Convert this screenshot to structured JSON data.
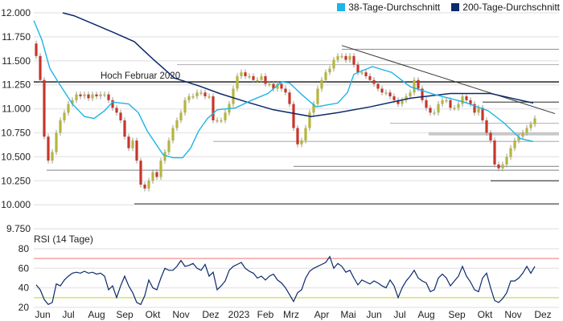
{
  "chart_data": {
    "type": "candlestick",
    "legend": {
      "placement": "top-right",
      "items": [
        {
          "label": "38-Tage-Durchschnitt",
          "color": "#1eb4e6"
        },
        {
          "label": "200-Tage-Durchschnitt",
          "color": "#0b2a6b"
        }
      ]
    },
    "price_axis": {
      "ylim": [
        9.75,
        12.0
      ],
      "ticks": [
        "12.000",
        "11.750",
        "11.500",
        "11.250",
        "11.000",
        "10.750",
        "10.500",
        "10.250",
        "10.000",
        "9.750"
      ],
      "tick_values": [
        12.0,
        11.75,
        11.5,
        11.25,
        11.0,
        10.75,
        10.5,
        10.25,
        10.0,
        9.75
      ]
    },
    "first_open": 11.68,
    "closes": [
      11.55,
      11.3,
      10.71,
      10.46,
      10.55,
      10.75,
      10.88,
      10.96,
      11.05,
      11.09,
      11.15,
      11.13,
      11.15,
      11.11,
      11.15,
      11.13,
      11.15,
      11.15,
      11.09,
      11.01,
      10.96,
      10.88,
      10.71,
      10.59,
      10.67,
      10.46,
      10.21,
      10.17,
      10.25,
      10.34,
      10.29,
      10.46,
      10.55,
      10.67,
      10.8,
      10.88,
      10.96,
      11.09,
      11.13,
      11.13,
      11.17,
      11.17,
      11.13,
      11.13,
      10.88,
      10.88,
      10.88,
      10.96,
      11.05,
      11.21,
      11.34,
      11.38,
      11.34,
      11.34,
      11.3,
      11.3,
      11.34,
      11.26,
      11.26,
      11.21,
      11.26,
      11.21,
      11.17,
      11.05,
      10.8,
      10.63,
      10.67,
      10.8,
      10.96,
      11.05,
      11.21,
      11.3,
      11.38,
      11.42,
      11.51,
      11.55,
      11.55,
      11.51,
      11.55,
      11.46,
      11.38,
      11.38,
      11.34,
      11.3,
      11.26,
      11.21,
      11.17,
      11.17,
      11.13,
      11.09,
      11.05,
      11.09,
      11.13,
      11.17,
      11.3,
      11.21,
      11.09,
      11.01,
      10.96,
      10.96,
      11.05,
      11.09,
      11.09,
      11.01,
      11.01,
      11.05,
      11.13,
      11.09,
      11.05,
      10.96,
      11.01,
      10.88,
      10.75,
      10.67,
      10.42,
      10.38,
      10.42,
      10.5,
      10.59,
      10.67,
      10.71,
      10.75,
      10.8,
      10.84,
      10.9
    ],
    "ma38": [
      [
        -0.6,
        11.92
      ],
      [
        1.4,
        11.72
      ],
      [
        3.4,
        11.42
      ],
      [
        5.6,
        11.27
      ],
      [
        9,
        11.05
      ],
      [
        12,
        10.92
      ],
      [
        14.4,
        10.9
      ],
      [
        17,
        10.98
      ],
      [
        19,
        11.07
      ],
      [
        23,
        11.05
      ],
      [
        25.4,
        10.96
      ],
      [
        27.6,
        10.77
      ],
      [
        31.6,
        10.52
      ],
      [
        34,
        10.49
      ],
      [
        36.4,
        10.49
      ],
      [
        38.4,
        10.59
      ],
      [
        40.4,
        10.77
      ],
      [
        42.6,
        10.9
      ],
      [
        45,
        10.99
      ],
      [
        49.6,
        11.01
      ],
      [
        53.6,
        11.09
      ],
      [
        57.6,
        11.16
      ],
      [
        61,
        11.28
      ],
      [
        63,
        11.27
      ],
      [
        66,
        11.15
      ],
      [
        69.6,
        11.02
      ],
      [
        75,
        11.06
      ],
      [
        77.4,
        11.17
      ],
      [
        79,
        11.36
      ],
      [
        83.6,
        11.44
      ],
      [
        88.4,
        11.38
      ],
      [
        93,
        11.23
      ],
      [
        99,
        11.15
      ],
      [
        106.4,
        11.07
      ],
      [
        112.4,
        10.98
      ],
      [
        116.4,
        10.85
      ],
      [
        120.4,
        10.69
      ],
      [
        123.6,
        10.66
      ]
    ],
    "ma200": [
      [
        6.6,
        12.0
      ],
      [
        9.4,
        11.97
      ],
      [
        19,
        11.8
      ],
      [
        24.4,
        11.7
      ],
      [
        29,
        11.52
      ],
      [
        34.4,
        11.32
      ],
      [
        40.4,
        11.24
      ],
      [
        45.6,
        11.16
      ],
      [
        52.4,
        11.07
      ],
      [
        59,
        10.99
      ],
      [
        63,
        10.96
      ],
      [
        68.4,
        10.92
      ],
      [
        75,
        10.96
      ],
      [
        83,
        11.02
      ],
      [
        93,
        11.11
      ],
      [
        103,
        11.16
      ],
      [
        113,
        11.16
      ],
      [
        123.6,
        11.06
      ]
    ],
    "levels": [
      {
        "value": 11.62,
        "from": 76,
        "style": "gray"
      },
      {
        "value": 11.46,
        "from": 35,
        "style": "light"
      },
      {
        "value": 11.28,
        "from": -0.6,
        "style": "black",
        "label": "Hoch Februar 2020"
      },
      {
        "value": 11.07,
        "from": 111,
        "style": "dark"
      },
      {
        "value": 10.85,
        "from": 88,
        "style": "light"
      },
      {
        "value": 10.74,
        "from": 97.6,
        "style": "thick"
      },
      {
        "value": 10.66,
        "from": 44,
        "style": "light"
      },
      {
        "value": 10.4,
        "from": 64,
        "style": "gray"
      },
      {
        "value": 10.36,
        "from": 2.6,
        "style": "gray"
      },
      {
        "value": 10.25,
        "from": 113,
        "style": "dark"
      },
      {
        "value": 10.01,
        "from": 24.4,
        "style": "dark"
      }
    ],
    "trendline": [
      [
        76,
        11.66
      ],
      [
        129,
        10.95
      ]
    ],
    "annotation": "Hoch Februar 2020",
    "rsi": {
      "title": "RSI (14 Tage)",
      "ylim": [
        20,
        80
      ],
      "ticks": [
        "80",
        "60",
        "40",
        "20"
      ],
      "tick_values": [
        80,
        60,
        40,
        20
      ],
      "overbought": 70,
      "oversold": 30,
      "overbought_color": "#f4a3a3",
      "oversold_color": "#d6df6e",
      "values": [
        43,
        38,
        28,
        23,
        25,
        44,
        42,
        48,
        52,
        55,
        56,
        55,
        57,
        55,
        56,
        54,
        55,
        52,
        38,
        42,
        30,
        42,
        52,
        42,
        35,
        25,
        23,
        32,
        48,
        40,
        38,
        50,
        60,
        58,
        58,
        62,
        68,
        62,
        63,
        65,
        60,
        58,
        64,
        52,
        56,
        38,
        42,
        47,
        58,
        62,
        64,
        66,
        60,
        57,
        55,
        50,
        52,
        48,
        52,
        54,
        48,
        45,
        40,
        33,
        26,
        35,
        38,
        50,
        57,
        60,
        62,
        64,
        66,
        72,
        60,
        65,
        62,
        56,
        58,
        50,
        43,
        48,
        46,
        44,
        47,
        45,
        42,
        40,
        48,
        42,
        30,
        40,
        47,
        52,
        58,
        50,
        47,
        45,
        36,
        38,
        50,
        54,
        50,
        42,
        47,
        52,
        62,
        52,
        46,
        38,
        36,
        50,
        55,
        40,
        27,
        25,
        29,
        35,
        47,
        47,
        50,
        55,
        62,
        55,
        62
      ]
    },
    "x_axis": {
      "labels": [
        "Jun",
        "Jul",
        "Aug",
        "Sep",
        "Okt",
        "Nov",
        "Dez",
        "2023",
        "Feb",
        "Mrz",
        "Apr",
        "Mai",
        "Jun",
        "Jul",
        "Aug",
        "Sep",
        "Okt",
        "Nov",
        "Dez"
      ],
      "positions": [
        1.6,
        8,
        15,
        22,
        29,
        36,
        43.4,
        50.4,
        57,
        63.4,
        71,
        77.6,
        84,
        90.4,
        97,
        104.6,
        111.6,
        118.6,
        126
      ]
    },
    "colors": {
      "up": "#b4b63c",
      "down": "#c8352a",
      "wick": "#9a9a9a",
      "grid": "#e8e8e8"
    }
  }
}
